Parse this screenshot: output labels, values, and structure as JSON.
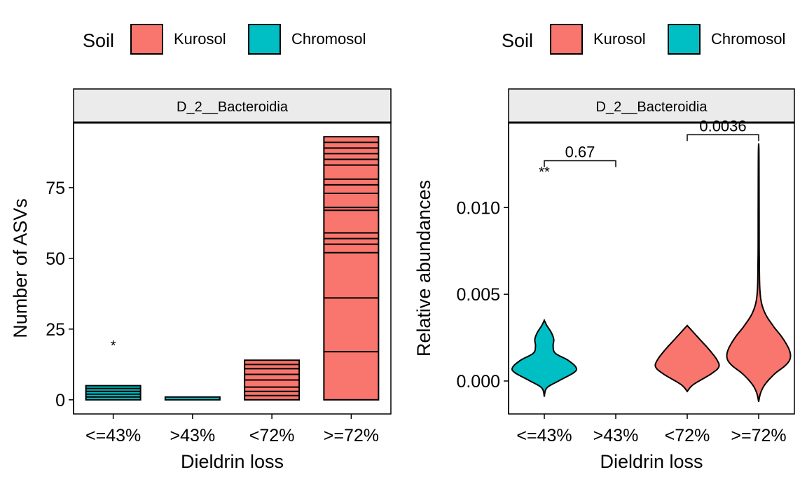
{
  "legend": {
    "title": "Soil",
    "items": [
      {
        "label": "Kurosol",
        "color": "#F8766D"
      },
      {
        "label": "Chromosol",
        "color": "#00BFC4"
      }
    ]
  },
  "chart_data": [
    {
      "type": "bar",
      "stacked": true,
      "facet_label": "D_2__Bacteroidia",
      "categories": [
        "<=43%",
        ">43%",
        "<72%",
        ">=72%"
      ],
      "fill_by_category": [
        "Chromosol",
        "Chromosol",
        "Kurosol",
        "Kurosol"
      ],
      "values": [
        5,
        1,
        14,
        93
      ],
      "segment_boundaries": [
        [
          1,
          2,
          3,
          4
        ],
        [],
        [
          1.5,
          3,
          4.5,
          7,
          9,
          11,
          12.5
        ],
        [
          17,
          36,
          52,
          55,
          57,
          59,
          67,
          68,
          73,
          76,
          78,
          83,
          85,
          87,
          89,
          91
        ]
      ],
      "xlabel": "Dieldrin loss",
      "ylabel": "Number of ASVs",
      "ylim": [
        -5,
        98
      ],
      "yticks": [
        0,
        25,
        50,
        75
      ],
      "annotations": [
        {
          "category": "<=43%",
          "text": "*",
          "y": 20
        }
      ],
      "grid": false,
      "legend_position": "top"
    },
    {
      "type": "violin",
      "facet_label": "D_2__Bacteroidia",
      "categories": [
        "<=43%",
        ">43%",
        "<72%",
        ">=72%"
      ],
      "xlabel": "Dieldrin loss",
      "ylabel": "Relative abundances",
      "ylim": [
        -0.0019,
        0.0149
      ],
      "yticks": [
        0.0,
        0.005,
        0.01
      ],
      "ytick_labels": [
        "0.000",
        "0.005",
        "0.010"
      ],
      "violins": [
        {
          "category": "<=43%",
          "soil": "Chromosol",
          "density": [
            [
              -0.0009,
              0.0
            ],
            [
              -0.0004,
              0.08
            ],
            [
              0.0,
              0.45
            ],
            [
              0.0005,
              0.95
            ],
            [
              0.0008,
              1.0
            ],
            [
              0.0012,
              0.75
            ],
            [
              0.0016,
              0.35
            ],
            [
              0.002,
              0.28
            ],
            [
              0.0024,
              0.3
            ],
            [
              0.0028,
              0.22
            ],
            [
              0.0032,
              0.08
            ],
            [
              0.0035,
              0.0
            ]
          ]
        },
        {
          "category": "<72%",
          "soil": "Kurosol",
          "density": [
            [
              -0.0006,
              0.0
            ],
            [
              -0.0002,
              0.2
            ],
            [
              0.0004,
              0.75
            ],
            [
              0.0008,
              1.0
            ],
            [
              0.0012,
              0.95
            ],
            [
              0.0018,
              0.7
            ],
            [
              0.0024,
              0.4
            ],
            [
              0.0029,
              0.15
            ],
            [
              0.0032,
              0.0
            ]
          ]
        },
        {
          "category": ">=72%",
          "soil": "Kurosol",
          "density": [
            [
              -0.0012,
              0.0
            ],
            [
              -0.0007,
              0.06
            ],
            [
              -0.0002,
              0.2
            ],
            [
              0.0004,
              0.5
            ],
            [
              0.0009,
              0.85
            ],
            [
              0.0013,
              1.0
            ],
            [
              0.0018,
              0.97
            ],
            [
              0.0025,
              0.75
            ],
            [
              0.0032,
              0.45
            ],
            [
              0.004,
              0.18
            ],
            [
              0.005,
              0.05
            ],
            [
              0.007,
              0.02
            ],
            [
              0.01,
              0.015
            ],
            [
              0.013,
              0.01
            ],
            [
              0.0137,
              0.0
            ]
          ]
        }
      ],
      "brackets": [
        {
          "from": "<=43%",
          "to": ">43%",
          "label": "0.67",
          "y": 0.0127
        },
        {
          "from": "<72%",
          "to": ">=72%",
          "label": "0.0036",
          "y": 0.0142
        }
      ],
      "annotations": [
        {
          "category": "<=43%",
          "text": "**",
          "y": 0.0122
        }
      ],
      "grid": false,
      "legend_position": "top"
    }
  ]
}
